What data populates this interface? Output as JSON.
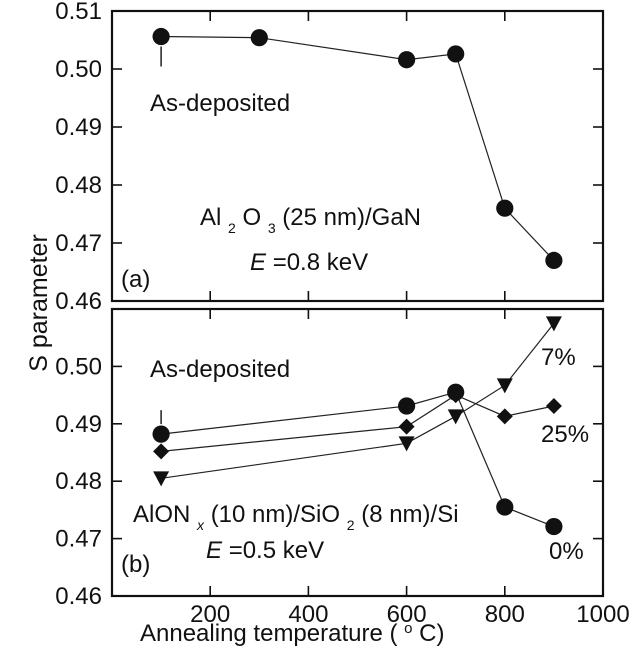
{
  "chart_data": [
    {
      "type": "line",
      "panel_label": "(a)",
      "xlabel": "",
      "ylabel": "S parameter",
      "xlim": [
        0,
        1000
      ],
      "ylim": [
        0.46,
        0.51
      ],
      "x_ticks": [
        200,
        400,
        600,
        800,
        1000
      ],
      "y_ticks": [
        0.46,
        0.47,
        0.48,
        0.49,
        0.5,
        0.51
      ],
      "annotation": "As-deposited",
      "sample_text": {
        "prefix": "Al",
        "sub1": "2",
        "middle": "O",
        "sub2": "3",
        "suffix": "(25 nm)/GaN"
      },
      "energy_text": {
        "symbol": "E",
        "value": "=0.8 keV"
      },
      "series": [
        {
          "marker": "circle",
          "x": [
            100,
            300,
            600,
            700,
            800,
            900
          ],
          "y": [
            0.5056,
            0.5054,
            0.5016,
            0.5026,
            0.476,
            0.467
          ]
        }
      ]
    },
    {
      "type": "line",
      "panel_label": "(b)",
      "xlabel": "Annealing temperature (oC)",
      "ylabel": "S parameter",
      "xlim": [
        0,
        1000
      ],
      "ylim": [
        0.46,
        0.51
      ],
      "x_ticks": [
        200,
        400,
        600,
        800,
        1000
      ],
      "y_ticks": [
        0.46,
        0.47,
        0.48,
        0.49,
        0.5
      ],
      "annotation": "As-deposited",
      "sample_text": {
        "prefix": "AlON",
        "subx": "x",
        "middle": "(10 nm)/SiO",
        "sub2": "2",
        "suffix": "(8 nm)/Si"
      },
      "energy_text": {
        "symbol": "E",
        "value": "=0.5 keV"
      },
      "series": [
        {
          "name": "0%",
          "marker": "circle",
          "x": [
            100,
            600,
            700,
            800,
            900
          ],
          "y": [
            0.4882,
            0.4931,
            0.4955,
            0.4755,
            0.4721
          ]
        },
        {
          "name": "25%",
          "marker": "diamond",
          "x": [
            100,
            600,
            700,
            800,
            900
          ],
          "y": [
            0.4852,
            0.4895,
            0.495,
            0.4913,
            0.4931
          ]
        },
        {
          "name": "7%",
          "marker": "triangle-down",
          "x": [
            100,
            600,
            700,
            800,
            900
          ],
          "y": [
            0.4805,
            0.4866,
            0.4913,
            0.4967,
            0.5075
          ]
        }
      ]
    }
  ],
  "axis": {
    "xlabel_main": "Annealing temperature (",
    "xlabel_sup": "o",
    "xlabel_tail": "C)"
  }
}
